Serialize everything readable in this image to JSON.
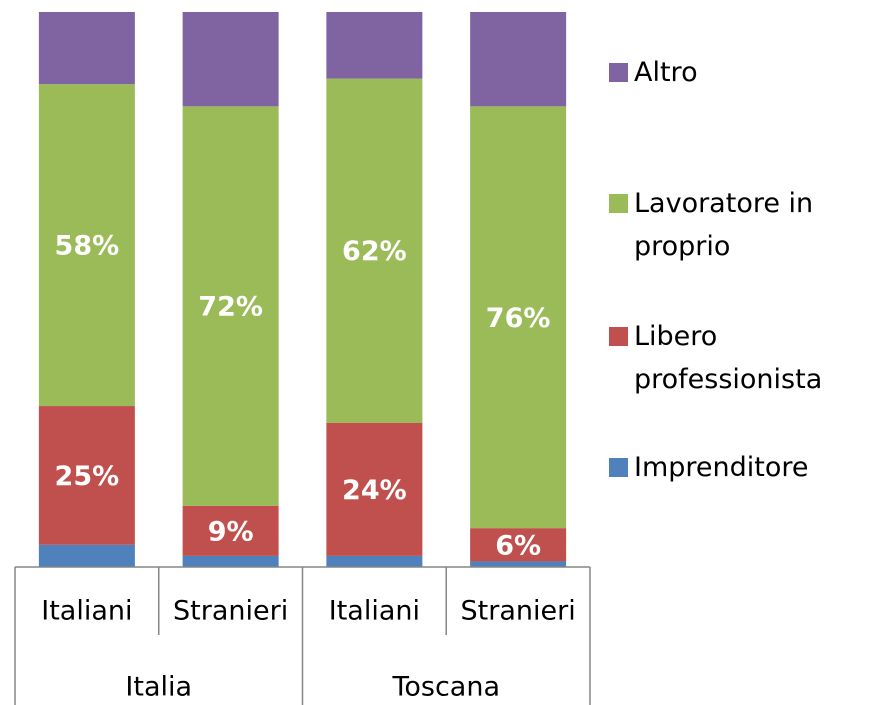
{
  "chart_data": {
    "type": "stacked_bar",
    "categories": [
      "Italiani",
      "Stranieri",
      "Italiani",
      "Stranieri"
    ],
    "groups": [
      "Italia",
      "Toscana"
    ],
    "ylim": [
      0,
      100
    ],
    "series": [
      {
        "name": "Imprenditore",
        "color": "#4f81bd",
        "values": [
          4,
          2,
          2,
          1
        ],
        "value_labels": [
          null,
          null,
          null,
          null
        ]
      },
      {
        "name": "Libero professionista",
        "color": "#c0504d",
        "values": [
          25,
          9,
          24,
          6
        ],
        "value_labels": [
          "25%",
          "9%",
          "24%",
          "6%"
        ]
      },
      {
        "name": "Lavoratore in proprio",
        "color": "#9bbb59",
        "values": [
          58,
          72,
          62,
          76
        ],
        "value_labels": [
          "58%",
          "72%",
          "62%",
          "76%"
        ]
      },
      {
        "name": "Altro",
        "color": "#8064a2",
        "values": [
          13,
          17,
          12,
          17
        ],
        "value_labels": [
          null,
          null,
          null,
          null
        ]
      }
    ],
    "legend": "right"
  }
}
